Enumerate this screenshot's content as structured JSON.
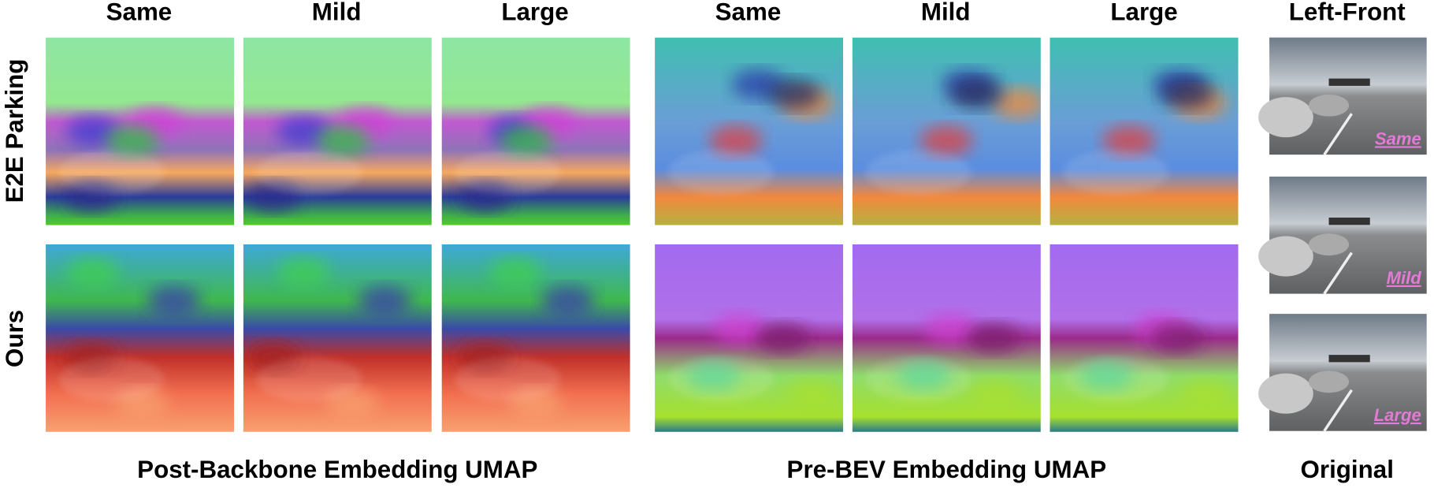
{
  "column_headers": [
    "Same",
    "Mild",
    "Large",
    "Same",
    "Mild",
    "Large",
    "Left-Front"
  ],
  "row_labels": [
    "E2E Parking",
    "Ours"
  ],
  "group_labels": [
    "Post-Backbone Embedding UMAP",
    "Pre-BEV Embedding UMAP",
    "Original"
  ],
  "photo_labels": [
    "Same",
    "Mild",
    "Large"
  ]
}
